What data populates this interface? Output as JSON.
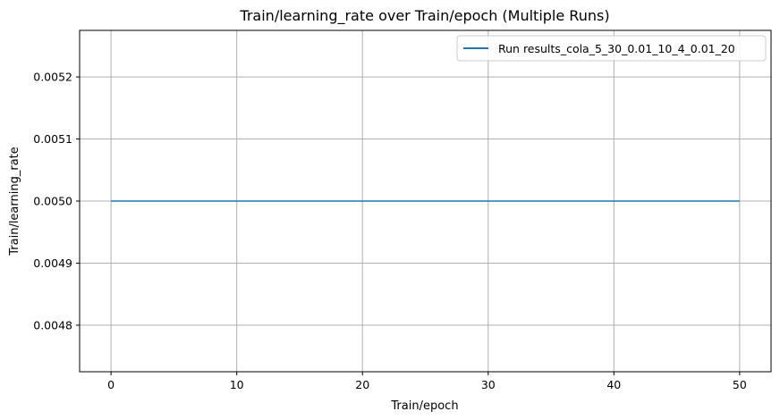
{
  "chart_data": {
    "type": "line",
    "title": "Train/learning_rate over Train/epoch (Multiple Runs)",
    "xlabel": "Train/epoch",
    "ylabel": "Train/learning_rate",
    "xlim": [
      -2.5,
      52.5
    ],
    "ylim": [
      0.004725,
      0.005275
    ],
    "x_ticks": [
      0,
      10,
      20,
      30,
      40,
      50
    ],
    "x_tick_labels": [
      "0",
      "10",
      "20",
      "30",
      "40",
      "50"
    ],
    "y_ticks": [
      0.0048,
      0.0049,
      0.005,
      0.0051,
      0.0052
    ],
    "y_tick_labels": [
      "0.0048",
      "0.0049",
      "0.0050",
      "0.0051",
      "0.0052"
    ],
    "grid": true,
    "legend_position": "top-right",
    "series": [
      {
        "name": "Run results_cola_5_30_0.01_10_4_0.01_20",
        "color": "#1f77b4",
        "x": [
          0,
          50
        ],
        "y": [
          0.005,
          0.005
        ]
      }
    ]
  }
}
